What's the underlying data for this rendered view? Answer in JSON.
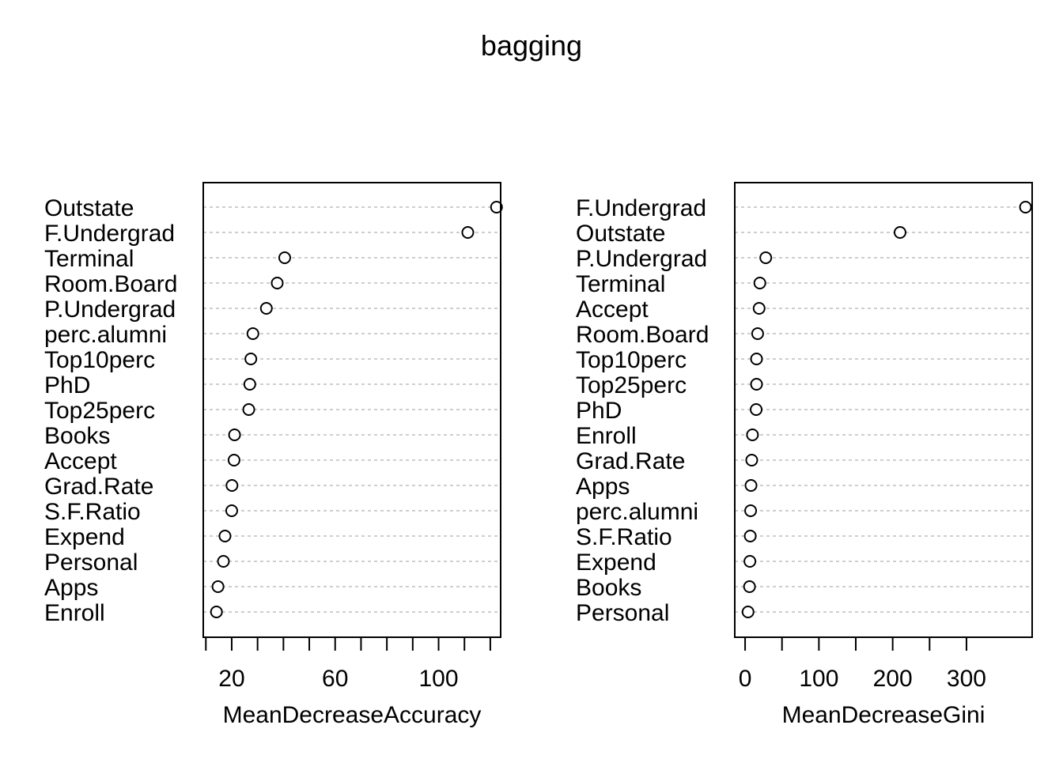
{
  "title": "bagging",
  "chart_data": [
    {
      "type": "scatter",
      "variant": "dotchart",
      "xlabel": "MeanDecreaseAccuracy",
      "xlim": [
        9,
        124
      ],
      "major_ticks": [
        10,
        20,
        30,
        40,
        50,
        60,
        70,
        80,
        90,
        100,
        110,
        120
      ],
      "tick_labels": [
        "20",
        "60",
        "100"
      ],
      "tick_label_values": [
        20,
        60,
        100
      ],
      "grid": "dashed horizontal guides",
      "categories": [
        "Outstate",
        "F.Undergrad",
        "Terminal",
        "Room.Board",
        "P.Undergrad",
        "perc.alumni",
        "Top10perc",
        "PhD",
        "Top25perc",
        "Books",
        "Accept",
        "Grad.Rate",
        "S.F.Ratio",
        "Expend",
        "Personal",
        "Apps",
        "Enroll"
      ],
      "values": [
        122.4,
        111.3,
        40.5,
        37.6,
        33.4,
        28.2,
        27.4,
        27.0,
        26.6,
        21.1,
        20.9,
        20.1,
        20.0,
        17.4,
        16.8,
        14.7,
        14.1
      ]
    },
    {
      "type": "scatter",
      "variant": "dotchart",
      "xlabel": "MeanDecreaseGini",
      "xlim": [
        -14,
        389
      ],
      "major_ticks": [
        0,
        50,
        100,
        150,
        200,
        250,
        300
      ],
      "tick_labels": [
        "0",
        "100",
        "200",
        "300"
      ],
      "tick_label_values": [
        0,
        100,
        200,
        300
      ],
      "grid": "dashed horizontal guides",
      "categories": [
        "F.Undergrad",
        "Outstate",
        "P.Undergrad",
        "Terminal",
        "Accept",
        "Room.Board",
        "Top10perc",
        "Top25perc",
        "PhD",
        "Enroll",
        "Grad.Rate",
        "Apps",
        "perc.alumni",
        "S.F.Ratio",
        "Expend",
        "Books",
        "Personal"
      ],
      "values": [
        380.0,
        210.0,
        28.0,
        20.0,
        19.0,
        17.0,
        15.5,
        15.5,
        15.0,
        10.0,
        9.0,
        8.0,
        7.5,
        7.0,
        6.5,
        6.0,
        4.0
      ]
    }
  ]
}
